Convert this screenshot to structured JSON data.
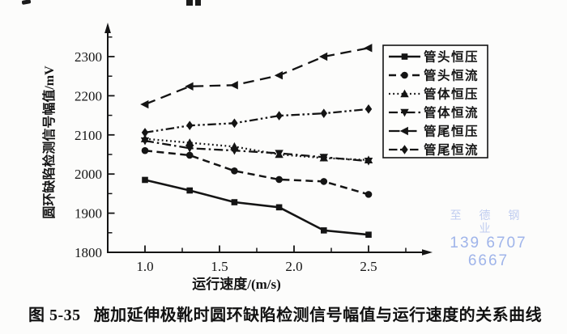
{
  "page": {
    "background": "#fcfcfb",
    "ink": "#141414"
  },
  "caption": {
    "prefix": "图 5-35",
    "text": "施加延伸极靴时圆环缺陷检测信号幅值与运行速度的关系曲线"
  },
  "watermark": {
    "line1": "至 德 钢 业",
    "line2": "139 6707 6667",
    "color": "#9fb4ea"
  },
  "chart_data": {
    "type": "line",
    "title": "",
    "xlabel": "运行速度/(m/s)",
    "ylabel": "圆环缺陷检测信号幅值/mV",
    "x": [
      1.0,
      1.3,
      1.6,
      1.9,
      2.2,
      2.5
    ],
    "xlim": [
      0.75,
      2.92
    ],
    "ylim": [
      1800,
      2360
    ],
    "grid": false,
    "legend_position": "upper right",
    "x_major_ticks": [
      1.0,
      1.5,
      2.0,
      2.5
    ],
    "x_tick_labels": [
      "1.0",
      "1.5",
      "2.0",
      "2.5"
    ],
    "x_minor_ticks": [
      1.25,
      1.75,
      2.25,
      2.75
    ],
    "y_major_ticks": [
      1800,
      1900,
      2000,
      2100,
      2200,
      2300
    ],
    "y_minor_ticks": [
      1850,
      1950,
      2050,
      2150,
      2250,
      2350
    ],
    "series": [
      {
        "name": "管头恒压",
        "marker": "square",
        "line": "solid",
        "values": [
          1985,
          1958,
          1928,
          1915,
          1856,
          1845
        ]
      },
      {
        "name": "管头恒流",
        "marker": "circle",
        "line": "dash",
        "values": [
          2060,
          2048,
          2008,
          1986,
          1981,
          1948
        ]
      },
      {
        "name": "管体恒压",
        "marker": "triangle-up",
        "line": "dot",
        "values": [
          2090,
          2080,
          2070,
          2050,
          2041,
          2036
        ]
      },
      {
        "name": "管体恒流",
        "marker": "triangle-down",
        "line": "dash-dot",
        "values": [
          2085,
          2066,
          2060,
          2053,
          2043,
          2033
        ]
      },
      {
        "name": "管尾恒压",
        "marker": "triangle-left",
        "line": "long-dash",
        "values": [
          2178,
          2224,
          2227,
          2252,
          2300,
          2322
        ]
      },
      {
        "name": "管尾恒流",
        "marker": "diamond",
        "line": "dash-dot-dot",
        "values": [
          2106,
          2124,
          2130,
          2149,
          2155,
          2166
        ]
      }
    ]
  }
}
